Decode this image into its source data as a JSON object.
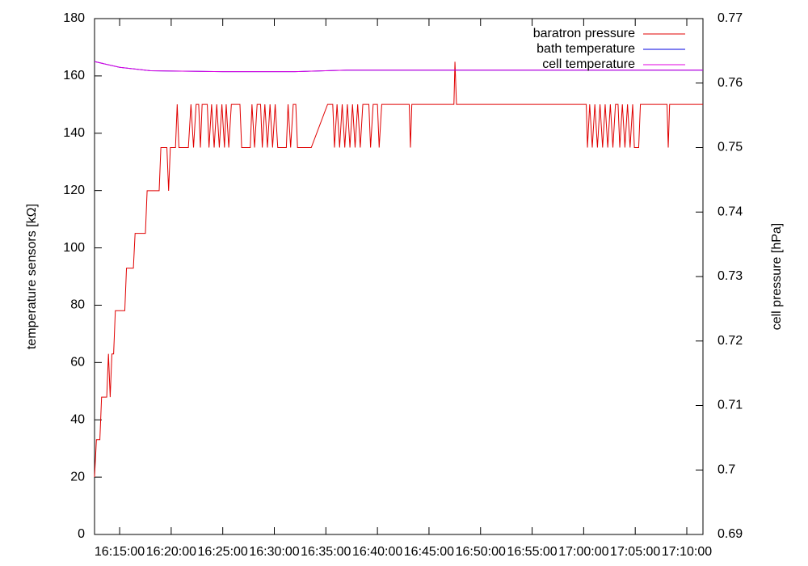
{
  "chart_data": {
    "type": "line",
    "ylabel": "temperature sensors [kΩ]",
    "y2label": "cell pressure [hPa]",
    "xlim": [
      "16:12:34",
      "17:11:34"
    ],
    "xticks": [
      "16:15:00",
      "16:20:00",
      "16:25:00",
      "16:30:00",
      "16:35:00",
      "16:40:00",
      "16:45:00",
      "16:50:00",
      "16:55:00",
      "17:00:00",
      "17:05:00",
      "17:10:00"
    ],
    "ylim": [
      0,
      180
    ],
    "yticks": [
      0,
      20,
      40,
      60,
      80,
      100,
      120,
      140,
      160,
      180
    ],
    "y2lim": [
      0.69,
      0.77
    ],
    "y2ticks": [
      0.69,
      0.7,
      0.71,
      0.72,
      0.73,
      0.74,
      0.75,
      0.76,
      0.77
    ],
    "legend": "top-right",
    "series": [
      {
        "name": "baratron pressure",
        "color": "#e00000",
        "axis": "y2",
        "x": [
          "16:12:34",
          "16:12:45",
          "16:13:05",
          "16:13:15",
          "16:13:45",
          "16:13:55",
          "16:14:05",
          "16:14:15",
          "16:14:25",
          "16:14:35",
          "16:15:30",
          "16:15:40",
          "16:16:20",
          "16:16:30",
          "16:17:30",
          "16:17:40",
          "16:18:50",
          "16:19:00",
          "16:19:35",
          "16:19:45",
          "16:19:55",
          "16:20:25",
          "16:20:35",
          "16:20:45",
          "16:21:40",
          "16:21:55",
          "16:22:10",
          "16:22:25",
          "16:22:40",
          "16:22:50",
          "16:23:00",
          "16:23:30",
          "16:23:40",
          "16:23:55",
          "16:24:10",
          "16:24:25",
          "16:24:40",
          "16:24:55",
          "16:25:10",
          "16:25:20",
          "16:25:35",
          "16:25:50",
          "16:26:40",
          "16:26:50",
          "16:27:40",
          "16:27:50",
          "16:28:05",
          "16:28:20",
          "16:28:40",
          "16:28:50",
          "16:29:05",
          "16:29:20",
          "16:29:35",
          "16:29:50",
          "16:30:05",
          "16:30:20",
          "16:31:10",
          "16:31:20",
          "16:31:35",
          "16:31:50",
          "16:32:05",
          "16:32:15",
          "16:33:35",
          "16:35:10",
          "16:35:40",
          "16:35:50",
          "16:36:05",
          "16:36:20",
          "16:36:35",
          "16:36:50",
          "16:37:05",
          "16:37:20",
          "16:37:35",
          "16:37:50",
          "16:38:05",
          "16:38:20",
          "16:38:35",
          "16:39:10",
          "16:39:20",
          "16:39:35",
          "16:40:00",
          "16:40:10",
          "16:40:25",
          "16:43:05",
          "16:43:12",
          "16:43:20",
          "16:47:25",
          "16:47:31",
          "16:47:40",
          "17:00:15",
          "17:00:22",
          "17:00:35",
          "17:00:50",
          "17:01:05",
          "17:01:20",
          "17:01:35",
          "17:01:50",
          "17:02:05",
          "17:02:20",
          "17:02:35",
          "17:02:50",
          "17:03:05",
          "17:03:20",
          "17:03:30",
          "17:03:45",
          "17:04:00",
          "17:04:15",
          "17:04:30",
          "17:04:45",
          "17:04:55",
          "17:05:20",
          "17:05:30",
          "17:08:05",
          "17:08:12",
          "17:08:20",
          "17:11:34"
        ],
        "values": [
          0.6989,
          0.7047,
          0.7047,
          0.7113,
          0.7113,
          0.718,
          0.7113,
          0.718,
          0.718,
          0.7247,
          0.7247,
          0.7313,
          0.7313,
          0.7367,
          0.7367,
          0.7433,
          0.7433,
          0.75,
          0.75,
          0.7433,
          0.75,
          0.75,
          0.7567,
          0.75,
          0.75,
          0.7567,
          0.75,
          0.7567,
          0.7567,
          0.75,
          0.7567,
          0.7567,
          0.75,
          0.7567,
          0.75,
          0.7567,
          0.75,
          0.7567,
          0.75,
          0.7567,
          0.75,
          0.7567,
          0.7567,
          0.75,
          0.75,
          0.7567,
          0.75,
          0.7567,
          0.7567,
          0.75,
          0.7567,
          0.75,
          0.7567,
          0.75,
          0.7567,
          0.75,
          0.75,
          0.7567,
          0.75,
          0.7567,
          0.7567,
          0.75,
          0.75,
          0.7567,
          0.7567,
          0.75,
          0.7567,
          0.75,
          0.7567,
          0.75,
          0.7567,
          0.75,
          0.7567,
          0.75,
          0.7567,
          0.75,
          0.7567,
          0.7567,
          0.75,
          0.7567,
          0.7567,
          0.75,
          0.7567,
          0.7567,
          0.75,
          0.7567,
          0.7567,
          0.7633,
          0.7567,
          0.7567,
          0.75,
          0.7567,
          0.75,
          0.7567,
          0.75,
          0.7567,
          0.75,
          0.7567,
          0.75,
          0.7567,
          0.75,
          0.7567,
          0.7567,
          0.75,
          0.7567,
          0.75,
          0.7567,
          0.75,
          0.7567,
          0.75,
          0.75,
          0.7567,
          0.7567,
          0.75,
          0.7567,
          0.7567
        ]
      },
      {
        "name": "bath temperature",
        "color": "#0000e0",
        "x": [
          "16:12:34",
          "16:15:00",
          "16:18:00",
          "16:25:00",
          "16:32:00",
          "16:37:00",
          "17:11:34"
        ],
        "values": [
          165,
          163,
          161.8,
          161.5,
          161.5,
          162,
          162
        ]
      },
      {
        "name": "cell temperature",
        "color": "#e000e0",
        "x": [
          "16:12:34",
          "16:15:00",
          "16:18:00",
          "16:25:00",
          "16:32:00",
          "16:37:00",
          "17:11:34"
        ],
        "values": [
          165,
          163,
          161.8,
          161.5,
          161.5,
          162,
          162
        ]
      }
    ]
  }
}
